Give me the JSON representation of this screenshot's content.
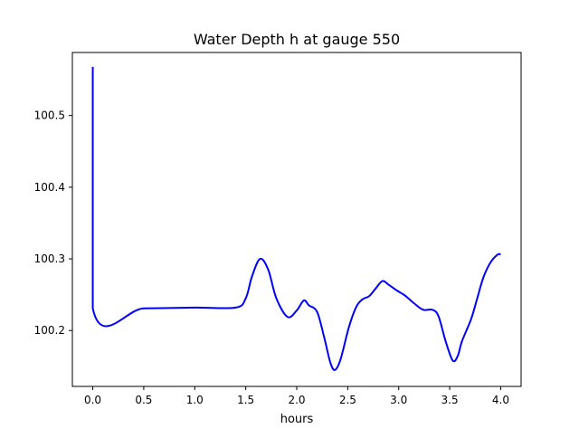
{
  "chart_data": {
    "type": "line",
    "title": "Water Depth h at gauge 550",
    "xlabel": "hours",
    "ylabel": "",
    "xlim": [
      -0.2,
      4.2
    ],
    "ylim": [
      100.122,
      100.588
    ],
    "grid": false,
    "x_ticks": [
      0.0,
      0.5,
      1.0,
      1.5,
      2.0,
      2.5,
      3.0,
      3.5,
      4.0
    ],
    "x_tick_labels": [
      "0.0",
      "0.5",
      "1.0",
      "1.5",
      "2.0",
      "2.5",
      "3.0",
      "3.5",
      "4.0"
    ],
    "y_ticks": [
      100.2,
      100.3,
      100.4,
      100.5
    ],
    "y_tick_labels": [
      "100.2",
      "100.3",
      "100.4",
      "100.5"
    ],
    "series": [
      {
        "name": "h",
        "color": "#0000ff",
        "x": [
          0.0,
          0.0,
          0.5,
          1.0,
          1.4,
          1.5,
          1.56,
          1.64,
          1.72,
          1.8,
          1.91,
          2.0,
          2.07,
          2.12,
          2.2,
          2.27,
          2.33,
          2.375,
          2.43,
          2.51,
          2.58,
          2.64,
          2.71,
          2.77,
          2.84,
          2.9,
          2.98,
          3.06,
          3.15,
          3.24,
          3.33,
          3.39,
          3.46,
          3.53,
          3.58,
          3.62,
          3.71,
          3.77,
          3.83,
          3.9,
          3.97,
          4.0
        ],
        "y": [
          100.568,
          100.231,
          100.231,
          100.232,
          100.232,
          100.245,
          100.275,
          100.3,
          100.285,
          100.245,
          100.219,
          100.228,
          100.242,
          100.235,
          100.226,
          100.19,
          100.155,
          100.145,
          100.16,
          100.204,
          100.232,
          100.243,
          100.248,
          100.258,
          100.269,
          100.264,
          100.256,
          100.249,
          100.238,
          100.229,
          100.229,
          100.22,
          100.185,
          100.158,
          100.165,
          100.185,
          100.216,
          100.245,
          100.274,
          100.295,
          100.306,
          100.306
        ]
      }
    ]
  }
}
